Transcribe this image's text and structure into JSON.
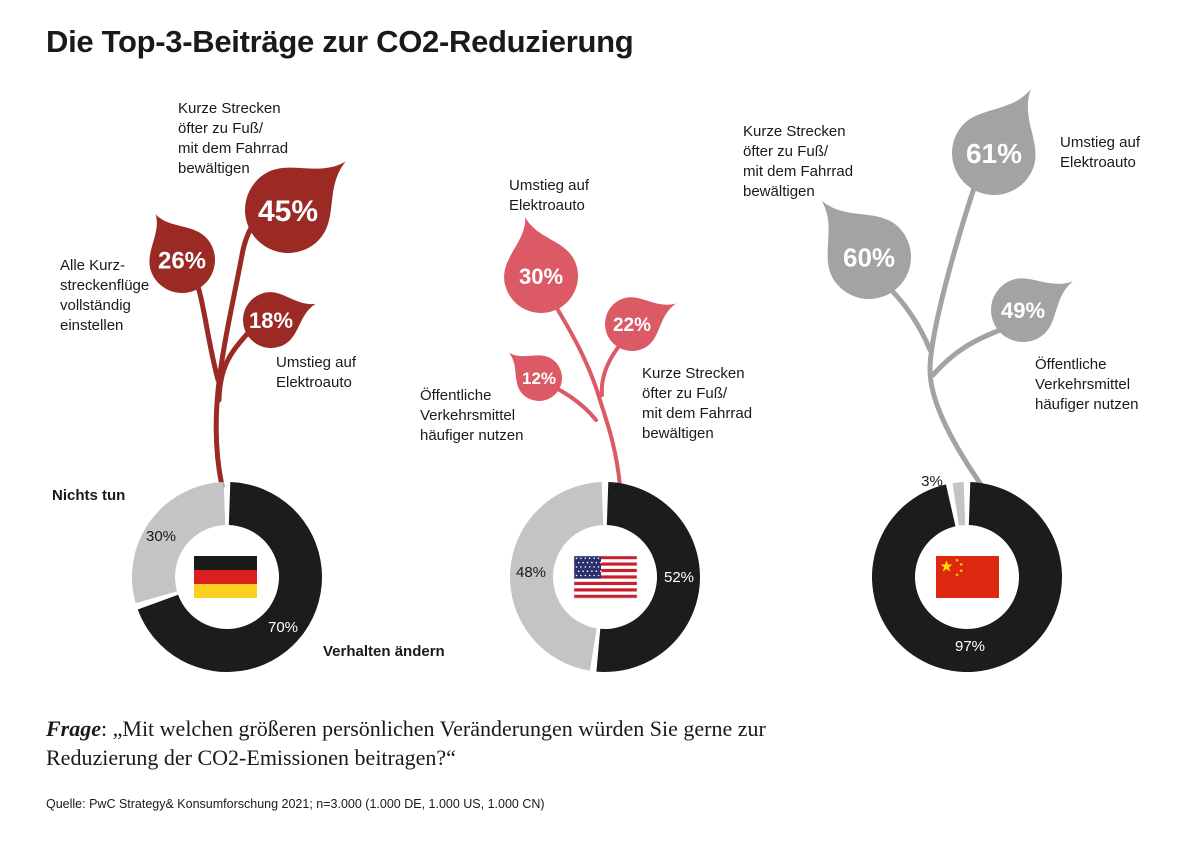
{
  "title": "Die Top-3-Beiträge zur CO2-Reduzierung",
  "question": {
    "label": "Frage",
    "text": ": „Mit welchen größeren persönlichen Veränderungen würden Sie gerne zur Reduzierung der CO2-Emissionen beitragen?“"
  },
  "source": "Quelle: PwC Strategy& Konsumforschung 2021; n=3.000 (1.000 DE, 1.000 US, 1.000 CN)",
  "chart_data": [
    {
      "type": "pie",
      "country": "DE",
      "flag_icon": "germany-flag-icon",
      "color": "#9b2a25",
      "slices": [
        {
          "name": "Verhalten ändern",
          "value": 70,
          "label": "70%"
        },
        {
          "name": "Nichts tun",
          "value": 30,
          "label": "30%"
        }
      ],
      "leaves": [
        {
          "name": "Kurze Strecken öfter zu Fuß/ mit dem Fahrrad bewältigen",
          "value": 45,
          "label": "45%",
          "lines": [
            "Kurze Strecken",
            "öfter zu Fuß/",
            "mit dem Fahrrad",
            "bewältigen"
          ]
        },
        {
          "name": "Alle Kurzstreckenflüge vollständig einstellen",
          "value": 26,
          "label": "26%",
          "lines": [
            "Alle Kurz-",
            "streckenflüge",
            "vollständig",
            "einstellen"
          ]
        },
        {
          "name": "Umstieg auf Elektroauto",
          "value": 18,
          "label": "18%",
          "lines": [
            "Umstieg auf",
            "Elektroauto"
          ]
        }
      ]
    },
    {
      "type": "pie",
      "country": "US",
      "flag_icon": "usa-flag-icon",
      "color": "#db5a66",
      "slices": [
        {
          "name": "Verhalten ändern",
          "value": 52,
          "label": "52%"
        },
        {
          "name": "Nichts tun",
          "value": 48,
          "label": "48%"
        }
      ],
      "leaves": [
        {
          "name": "Umstieg auf Elektroauto",
          "value": 30,
          "label": "30%",
          "lines": [
            "Umstieg auf",
            "Elektroauto"
          ]
        },
        {
          "name": "Kurze Strecken öfter zu Fuß/ mit dem Fahrrad bewältigen",
          "value": 22,
          "label": "22%",
          "lines": [
            "Kurze Strecken",
            "öfter zu Fuß/",
            "mit dem Fahrrad",
            "bewältigen"
          ]
        },
        {
          "name": "Öffentliche Verkehrsmittel häufiger nutzen",
          "value": 12,
          "label": "12%",
          "lines": [
            "Öffentliche",
            "Verkehrsmittel",
            "häufiger nutzen"
          ]
        }
      ]
    },
    {
      "type": "pie",
      "country": "CN",
      "flag_icon": "china-flag-icon",
      "color": "#a3a3a3",
      "slices": [
        {
          "name": "Verhalten ändern",
          "value": 97,
          "label": "97%"
        },
        {
          "name": "Nichts tun",
          "value": 3,
          "label": "3%"
        }
      ],
      "leaves": [
        {
          "name": "Umstieg auf Elektroauto",
          "value": 61,
          "label": "61%",
          "lines": [
            "Umstieg auf",
            "Elektroauto"
          ]
        },
        {
          "name": "Kurze Strecken öfter zu Fuß/ mit dem Fahrrad bewältigen",
          "value": 60,
          "label": "60%",
          "lines": [
            "Kurze Strecken",
            "öfter zu Fuß/",
            "mit dem Fahrrad",
            "bewältigen"
          ]
        },
        {
          "name": "Öffentliche Verkehrsmittel häufiger nutzen",
          "value": 49,
          "label": "49%",
          "lines": [
            "Öffentliche",
            "Verkehrsmittel",
            "häufiger nutzen"
          ]
        }
      ]
    }
  ],
  "legend": {
    "nichts_tun": "Nichts tun",
    "verhalten_aendern": "Verhalten ändern"
  }
}
